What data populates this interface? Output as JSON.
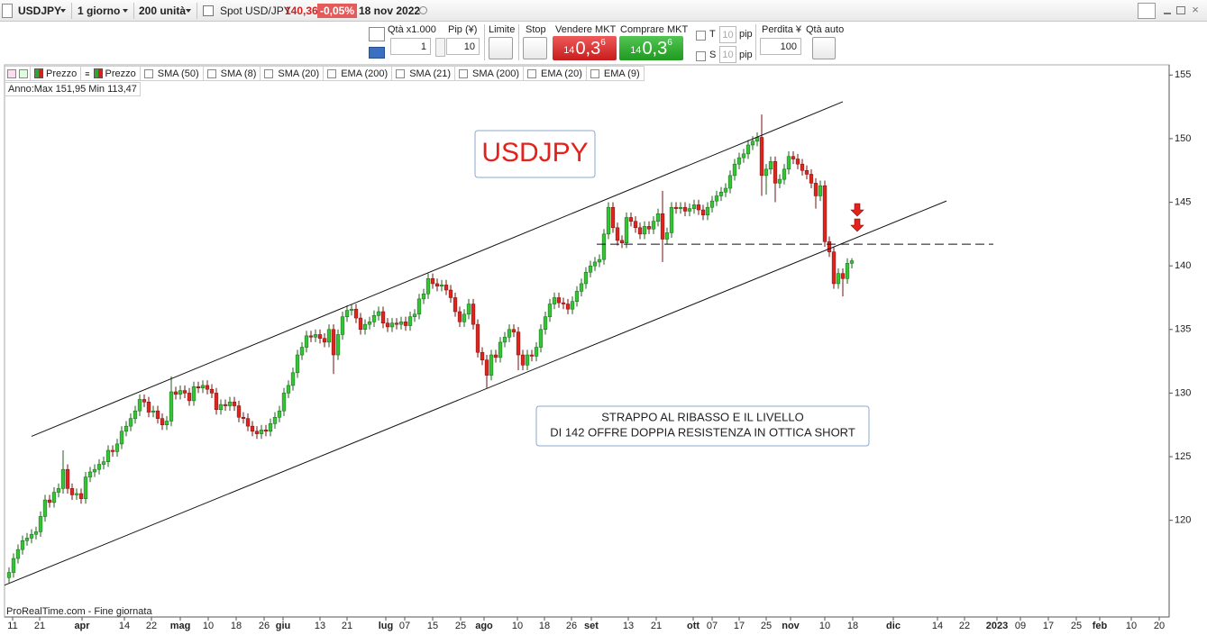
{
  "toolbar": {
    "symbol": "USDJPY",
    "timeframe": "1 giorno",
    "units": "200 unità",
    "instrument": "Spot USD/JPY",
    "price": "140,36",
    "change": "-0,05%",
    "date": "18 nov 2022"
  },
  "order_panel": {
    "quantity_label": "Qtà x1.000",
    "quantity": "1",
    "pip_label": "Pip (¥)",
    "pip": "10",
    "limit_label": "Limite",
    "stop_label": "Stop",
    "sell_label": "Vendere MKT",
    "sell_price": {
      "big_figure": "14",
      "pips": "0,3",
      "fraction": "6"
    },
    "buy_label": "Comprare MKT",
    "buy_price": {
      "big_figure": "14",
      "pips": "0,3",
      "fraction": "6"
    },
    "trailing_label": "T",
    "trailing_value": "10",
    "trailing_unit": "pip",
    "stop_s_label": "S",
    "stop_s_value": "10",
    "stop_s_unit": "pip",
    "loss_label": "Perdita ¥",
    "loss": "100",
    "auto_qty_label": "Qtà auto"
  },
  "indicators": [
    "Prezzo",
    "Prezzo",
    "SMA (50)",
    "SMA (8)",
    "SMA (20)",
    "EMA (200)",
    "SMA (21)",
    "SMA (200)",
    "EMA (20)",
    "EMA (9)"
  ],
  "chart_data": {
    "type": "candlestick",
    "title": "USDJPY",
    "annotations": [
      "STRAPPO AL RIBASSO E IL LIVELLO",
      "DI 142 OFFRE DOPPIA RESISTENZA IN OTTICA SHORT"
    ],
    "range_label": "Anno:Max 151,95 Min 113,47",
    "source": "ProRealTime.com - Fine giornata",
    "up_color": "#33c633",
    "down_color": "#e3221c",
    "grid": false,
    "open": [
      115.5,
      115.9,
      117,
      117.7,
      118.4,
      118.6,
      118.9,
      119.1,
      120.3,
      121.6,
      121.4,
      122.2,
      122.5,
      124,
      122.5,
      122,
      122.1,
      121.7,
      123.4,
      123.8,
      124,
      124.4,
      124.6,
      125.5,
      125.4,
      126,
      127,
      127.4,
      128,
      128.6,
      129.5,
      129.3,
      128.5,
      128.6,
      128,
      127.5,
      127.8,
      130.1,
      129.9,
      130.2,
      130,
      129.4,
      130.5,
      130.4,
      130.6,
      130.3,
      130,
      128.7,
      129.1,
      129,
      129.3,
      129,
      128.1,
      128,
      127.4,
      127,
      126.8,
      127.1,
      127,
      127.6,
      128.1,
      128.6,
      130,
      130.6,
      131.6,
      133,
      133.6,
      134.5,
      134.4,
      134.6,
      134.3,
      134,
      135,
      133,
      134.6,
      136,
      136.5,
      136.6,
      135.9,
      135,
      135.4,
      135.6,
      136.1,
      136.4,
      135.5,
      135.2,
      135.5,
      135.4,
      135.6,
      135.3,
      136,
      136.2,
      137.4,
      137.8,
      139,
      138.6,
      138.4,
      138.5,
      138.1,
      137.5,
      136.4,
      135.6,
      136.2,
      137,
      135.4,
      133.2,
      132.6,
      131.4,
      133,
      132.8,
      134,
      134.4,
      135,
      134.8,
      133,
      132.2,
      133,
      132.9,
      133.6,
      135,
      136,
      137,
      137.5,
      137.1,
      137,
      136.6,
      137.2,
      138,
      138.6,
      139.5,
      140,
      140.3,
      140.5,
      142.5,
      144.6,
      143,
      142,
      141.8,
      143.8,
      143.5,
      143,
      142.5,
      143.1,
      142.9,
      143.5,
      144.1,
      142.1,
      142.6,
      144.6,
      144.5,
      144.6,
      144.3,
      144.5,
      144.8,
      144.4,
      144,
      144.6,
      145.1,
      145.5,
      145.8,
      146.1,
      147.1,
      148,
      148.5,
      148.8,
      149.5,
      149.8,
      150.1,
      147.1,
      147.6,
      148.2,
      146.5,
      146.8,
      147.6,
      148.6,
      148.4,
      148,
      147.5,
      147.2,
      146.5,
      145.5,
      146.3,
      141.9,
      141.1,
      138.6,
      139.4,
      139,
      140.2
    ],
    "high": [
      116.3,
      117.4,
      118.1,
      118.8,
      119,
      119.3,
      119.5,
      120.7,
      122,
      122,
      122.6,
      122.9,
      125.5,
      124.4,
      122.9,
      122.5,
      122.5,
      123.8,
      124.2,
      124.4,
      124.8,
      125,
      125.9,
      125.9,
      126.4,
      127.4,
      127.8,
      128.4,
      129,
      129.9,
      129.9,
      129.7,
      129,
      129,
      128.4,
      128.2,
      131.3,
      130.5,
      130.6,
      130.6,
      130.4,
      130.9,
      130.9,
      131,
      131,
      130.7,
      130.4,
      129.5,
      129.5,
      129.7,
      129.7,
      129.4,
      128.5,
      128.4,
      127.8,
      127.4,
      127.5,
      127.5,
      128,
      128.5,
      129,
      130.4,
      131,
      132,
      133.4,
      134,
      134.9,
      134.9,
      135,
      135,
      134.7,
      135.4,
      135.4,
      135,
      136.4,
      136.9,
      137,
      137,
      136.3,
      135.8,
      136,
      136.5,
      136.8,
      136.8,
      135.9,
      135.9,
      135.9,
      136,
      136,
      136.4,
      136.6,
      137.8,
      138.2,
      139.4,
      139.4,
      139,
      138.9,
      138.9,
      138.5,
      137.9,
      136.8,
      136.6,
      137.4,
      137.4,
      135.8,
      133.6,
      133,
      133.4,
      133.4,
      134.4,
      134.8,
      135.4,
      135.4,
      135.2,
      133.4,
      133.4,
      133.4,
      134,
      135.4,
      136.4,
      137.4,
      137.9,
      137.9,
      137.5,
      137.4,
      137.6,
      138.4,
      139,
      139.9,
      140.4,
      140.7,
      140.9,
      142.9,
      145,
      145,
      143.4,
      142.4,
      144.2,
      144.2,
      143.9,
      143.4,
      143.5,
      143.5,
      143.9,
      144.5,
      145.9,
      143,
      145,
      145,
      145,
      145,
      144.9,
      145.2,
      145.2,
      144.8,
      145,
      145.5,
      145.9,
      146.2,
      146.5,
      147.5,
      148.4,
      148.9,
      149.2,
      149.9,
      150.2,
      150.5,
      151.9,
      148,
      148.6,
      148.6,
      147.2,
      148,
      149,
      149,
      148.8,
      148.4,
      147.9,
      147.6,
      146.9,
      146.7,
      146.7,
      142.3,
      141.5,
      139.8,
      139.8,
      140.6,
      140.6
    ],
    "low": [
      115.1,
      115.5,
      116.6,
      117.3,
      118,
      118.2,
      118.5,
      118.7,
      119.9,
      121,
      121,
      121.8,
      122.1,
      122.1,
      121.6,
      121.6,
      121.3,
      121.3,
      123,
      123.4,
      123.6,
      124,
      124.2,
      125,
      125,
      125.6,
      126.6,
      127,
      127.6,
      128.2,
      128.9,
      128.1,
      128.1,
      127.6,
      127.1,
      127.1,
      127.4,
      129.5,
      129.5,
      129.6,
      129,
      129,
      130,
      130,
      129.9,
      129.6,
      128.3,
      128.3,
      128.6,
      128.6,
      128.6,
      127.7,
      127.6,
      127,
      126.6,
      126.4,
      126.4,
      126.6,
      126.6,
      127.2,
      127.7,
      128.2,
      129.6,
      130.2,
      131.2,
      132.6,
      133.2,
      134,
      134,
      133.9,
      133.6,
      133.6,
      131.5,
      132.6,
      134.2,
      135.6,
      136.1,
      135.5,
      134.6,
      134.6,
      135,
      135.2,
      135.7,
      135.1,
      134.8,
      134.8,
      135,
      135,
      134.9,
      134.9,
      135.6,
      135.8,
      137,
      137.4,
      138.2,
      138,
      138,
      137.7,
      137.1,
      136,
      135.2,
      135.2,
      135.8,
      135,
      132.8,
      132.2,
      130.4,
      131,
      132.4,
      132.4,
      133.6,
      134,
      134.4,
      131.8,
      131.8,
      131.8,
      132.5,
      132.5,
      133.2,
      134.6,
      135.6,
      136.6,
      136.7,
      136.6,
      136.2,
      136.2,
      136.8,
      137.6,
      138.2,
      139.1,
      139.6,
      139.9,
      140.1,
      142.1,
      142.6,
      141.6,
      141.4,
      141.4,
      143.1,
      142.6,
      142.1,
      142.1,
      142.5,
      142.5,
      143.1,
      140.3,
      141.7,
      142.2,
      144.1,
      144.1,
      143.9,
      143.9,
      144.1,
      144,
      143.6,
      143.6,
      144.2,
      144.7,
      145.1,
      145.4,
      145.7,
      146.7,
      147.6,
      148.1,
      148.4,
      149.1,
      149.4,
      145.5,
      145.6,
      147.2,
      145,
      146.1,
      146.4,
      147.2,
      148,
      147.6,
      147.1,
      146.8,
      146.1,
      144.5,
      145.1,
      141.5,
      140.7,
      138.2,
      138.2,
      137.6,
      138.6,
      139.8
    ],
    "close": [
      115.9,
      117,
      117.7,
      118.4,
      118.6,
      118.9,
      119.1,
      120.3,
      121.6,
      121.4,
      122.2,
      122.5,
      124,
      122.5,
      122,
      122.1,
      121.7,
      123.4,
      123.8,
      124,
      124.4,
      124.6,
      125.5,
      125.4,
      126,
      127,
      127.4,
      128,
      128.6,
      129.5,
      129.3,
      128.5,
      128.6,
      128,
      127.5,
      127.8,
      130.1,
      129.9,
      130.2,
      130,
      129.4,
      130.5,
      130.4,
      130.6,
      130.3,
      130,
      128.7,
      129.1,
      129,
      129.3,
      129,
      128.1,
      128,
      127.4,
      127,
      126.8,
      127.1,
      127,
      127.6,
      128.1,
      128.6,
      130,
      130.6,
      131.6,
      133,
      133.6,
      134.5,
      134.4,
      134.6,
      134.3,
      134,
      135,
      133,
      134.6,
      136,
      136.5,
      136.6,
      135.9,
      135,
      135.4,
      135.6,
      136.1,
      136.4,
      135.5,
      135.2,
      135.5,
      135.4,
      135.6,
      135.3,
      136,
      136.2,
      137.4,
      137.8,
      139,
      138.6,
      138.4,
      138.5,
      138.1,
      137.5,
      136.4,
      135.6,
      136.2,
      137,
      135.4,
      133.2,
      132.6,
      131.4,
      133,
      132.8,
      134,
      134.4,
      135,
      134.8,
      133,
      132.2,
      133,
      132.9,
      133.6,
      135,
      136,
      137,
      137.5,
      137.1,
      137,
      136.6,
      137.2,
      138,
      138.6,
      139.5,
      140,
      140.3,
      140.5,
      142.5,
      144.6,
      143,
      142,
      141.8,
      143.8,
      143.5,
      143,
      142.5,
      143.1,
      142.9,
      143.5,
      144.1,
      142.1,
      142.6,
      144.6,
      144.5,
      144.6,
      144.3,
      144.5,
      144.8,
      144.4,
      144,
      144.6,
      145.1,
      145.5,
      145.8,
      146.1,
      147.1,
      148,
      148.5,
      148.8,
      149.5,
      149.8,
      150.1,
      147.1,
      147.6,
      148.2,
      146.5,
      146.8,
      147.6,
      148.6,
      148.4,
      148,
      147.5,
      147.2,
      146.5,
      145.5,
      146.3,
      141.9,
      141.1,
      138.6,
      139.4,
      139,
      140.2,
      140.4
    ],
    "lines": [
      {
        "x": [
          5,
          185
        ],
        "y": [
          126.6,
          152.9
        ],
        "style": "solid"
      },
      {
        "x": [
          -1,
          208
        ],
        "y": [
          114.9,
          145.1
        ],
        "style": "solid"
      },
      {
        "x": [
          130.4,
          218.4
        ],
        "y": [
          141.7,
          141.7
        ],
        "style": "dashed"
      }
    ],
    "line_color": "#111111",
    "xlim": [
      -1,
      257.4
    ],
    "xticks": [
      {
        "value": 0.8,
        "label": "11"
      },
      {
        "value": 6.8,
        "label": "21"
      },
      {
        "value": 16.2,
        "label": "apr"
      },
      {
        "value": 25.6,
        "label": "14"
      },
      {
        "value": 31.6,
        "label": "22"
      },
      {
        "value": 38,
        "label": "mag"
      },
      {
        "value": 44.2,
        "label": "10"
      },
      {
        "value": 50.4,
        "label": "18"
      },
      {
        "value": 56.6,
        "label": "26"
      },
      {
        "value": 60.8,
        "label": "giu"
      },
      {
        "value": 69,
        "label": "13"
      },
      {
        "value": 75,
        "label": "21"
      },
      {
        "value": 83.6,
        "label": "lug"
      },
      {
        "value": 87.8,
        "label": "07"
      },
      {
        "value": 94,
        "label": "15"
      },
      {
        "value": 100.2,
        "label": "25"
      },
      {
        "value": 105.4,
        "label": "ago"
      },
      {
        "value": 112.8,
        "label": "10"
      },
      {
        "value": 118.8,
        "label": "18"
      },
      {
        "value": 124.8,
        "label": "26"
      },
      {
        "value": 129.2,
        "label": "set"
      },
      {
        "value": 137.4,
        "label": "13"
      },
      {
        "value": 143.6,
        "label": "21"
      },
      {
        "value": 151.8,
        "label": "ott"
      },
      {
        "value": 156,
        "label": "07"
      },
      {
        "value": 162,
        "label": "17"
      },
      {
        "value": 168,
        "label": "25"
      },
      {
        "value": 173.4,
        "label": "nov"
      },
      {
        "value": 181,
        "label": "10"
      },
      {
        "value": 187.2,
        "label": "18"
      },
      {
        "value": 196.2,
        "label": "dic"
      },
      {
        "value": 206,
        "label": "14"
      },
      {
        "value": 212,
        "label": "22"
      },
      {
        "value": 219.2,
        "label": "2023"
      },
      {
        "value": 224.4,
        "label": "09"
      },
      {
        "value": 230.6,
        "label": "17"
      },
      {
        "value": 236.8,
        "label": "25"
      },
      {
        "value": 242,
        "label": "feb"
      },
      {
        "value": 249,
        "label": "10"
      },
      {
        "value": 255.2,
        "label": "20"
      }
    ],
    "ylim": [
      112.4,
      155.8
    ],
    "yticks": [
      120,
      125,
      130,
      135,
      140,
      145,
      150,
      155
    ]
  }
}
